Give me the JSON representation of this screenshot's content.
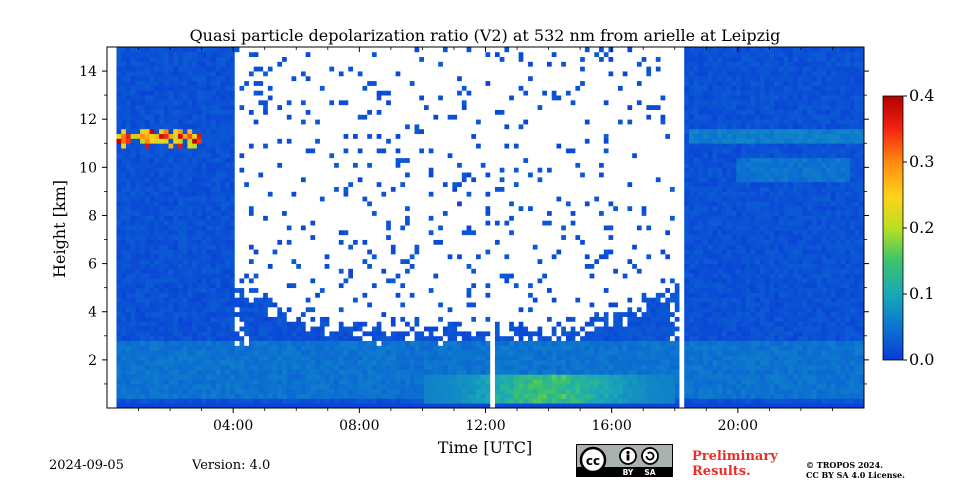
{
  "chart_data": {
    "type": "heatmap",
    "title": "Quasi particle depolarization ratio (V2) at 532 nm from arielle at Leipzig",
    "xlabel": "Time [UTC]",
    "ylabel": "Height [km]",
    "xlim": [
      0,
      24
    ],
    "ylim": [
      0,
      15
    ],
    "x_ticks": [
      {
        "value": 4,
        "label": "04:00"
      },
      {
        "value": 8,
        "label": "08:00"
      },
      {
        "value": 12,
        "label": "12:00"
      },
      {
        "value": 16,
        "label": "16:00"
      },
      {
        "value": 20,
        "label": "20:00"
      }
    ],
    "y_ticks": [
      {
        "value": 2,
        "label": "2"
      },
      {
        "value": 4,
        "label": "4"
      },
      {
        "value": 6,
        "label": "6"
      },
      {
        "value": 8,
        "label": "8"
      },
      {
        "value": 10,
        "label": "10"
      },
      {
        "value": 12,
        "label": "12"
      },
      {
        "value": 14,
        "label": "14"
      }
    ],
    "colorbar": {
      "range": [
        0.0,
        0.4
      ],
      "ticks": [
        {
          "value": 0.0,
          "label": "0.0"
        },
        {
          "value": 0.1,
          "label": "0.1"
        },
        {
          "value": 0.2,
          "label": "0.2"
        },
        {
          "value": 0.3,
          "label": "0.3"
        },
        {
          "value": 0.4,
          "label": "0.4"
        }
      ],
      "colors": [
        "#0a3ad8",
        "#0c73d0",
        "#1aa8b8",
        "#3ec46a",
        "#b8e020",
        "#ffd21a",
        "#ff8a10",
        "#f21f10",
        "#b40000"
      ]
    },
    "features": {
      "background_value": 0.02,
      "cirrus_layer": {
        "time_range": [
          0.1,
          3.0
        ],
        "height_range": [
          10.8,
          11.7
        ],
        "value_range": [
          0.2,
          0.4
        ]
      },
      "daylight_no_data": {
        "time_range": [
          4.0,
          18.2
        ],
        "min_height_edges": 5.5,
        "min_height_noon": 3.2
      },
      "data_gaps": [
        {
          "time_range": [
            0.0,
            0.25
          ]
        },
        {
          "time_range": [
            12.1,
            12.3
          ]
        },
        {
          "time_range": [
            18.1,
            18.3
          ]
        }
      ],
      "boundary_layer_enhancement": {
        "time_range": [
          10.0,
          18.0
        ],
        "height_range": [
          0.3,
          1.3
        ],
        "value_range": [
          0.06,
          0.15
        ]
      },
      "residual_layer": {
        "time_range": [
          0.0,
          24.0
        ],
        "height_range": [
          0.5,
          2.8
        ],
        "value": 0.05
      },
      "evening_thin_layers": [
        {
          "time_range": [
            18.4,
            24.0
          ],
          "height_range": [
            11.0,
            11.6
          ],
          "value": 0.06
        },
        {
          "time_range": [
            20.0,
            23.5
          ],
          "height_range": [
            9.5,
            10.3
          ],
          "value": 0.05
        }
      ]
    }
  },
  "footer": {
    "date": "2024-09-05",
    "version": "Version: 4.0",
    "license_badge": {
      "cc": "cc",
      "by": "BY",
      "sa": "SA"
    },
    "preliminary_line1": "Preliminary",
    "preliminary_line2": "Results.",
    "copyright_line1": "© TROPOS 2024.",
    "copyright_line2": "CC BY SA 4.0 License."
  }
}
